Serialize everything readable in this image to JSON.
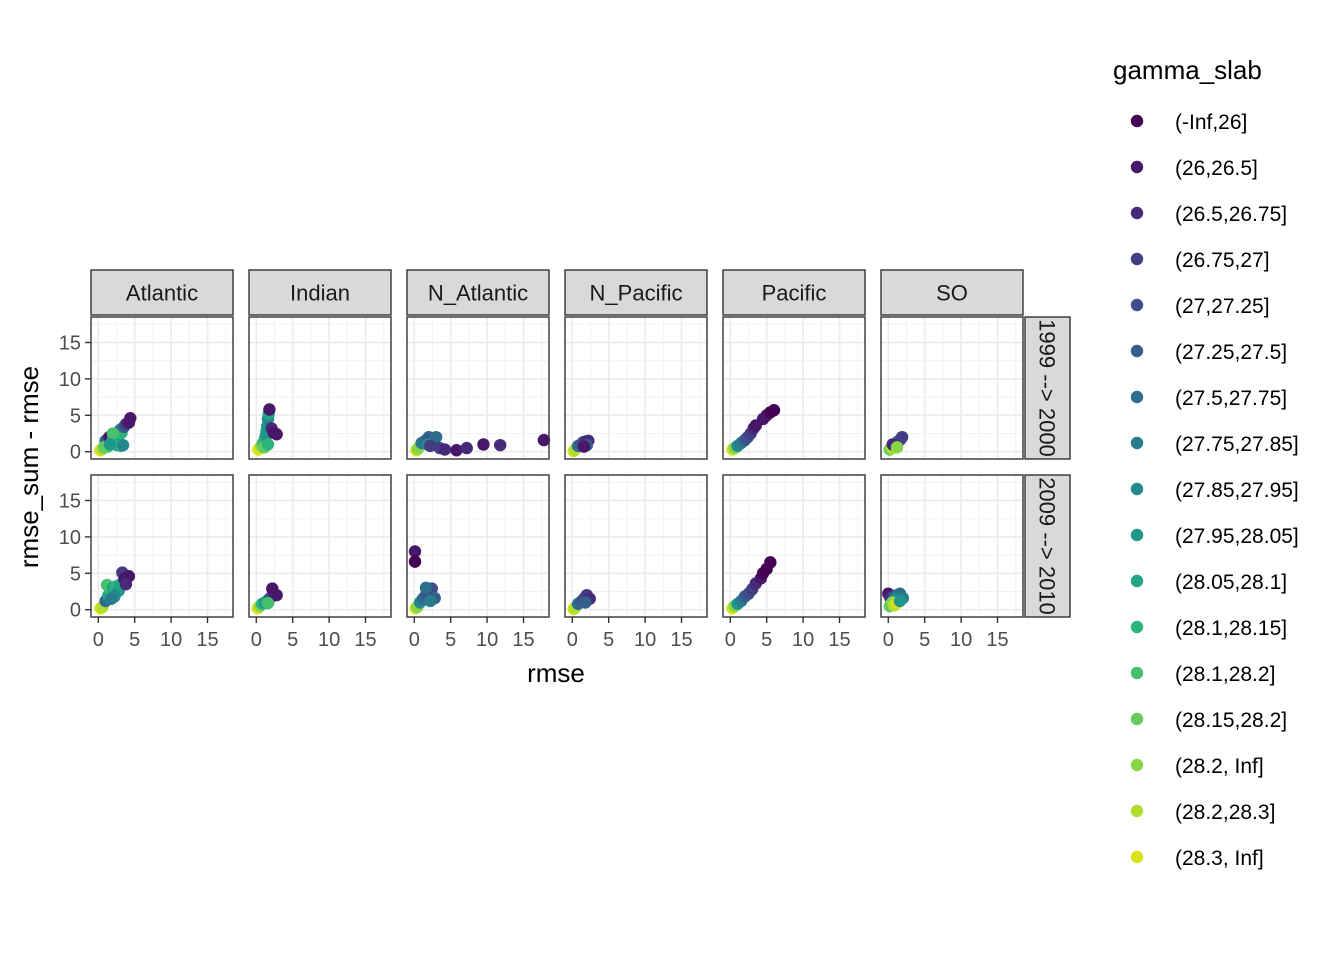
{
  "chart_data": {
    "type": "scatter",
    "facet_columns": [
      "Atlantic",
      "Indian",
      "N_Atlantic",
      "N_Pacific",
      "Pacific",
      "SO"
    ],
    "facet_rows": [
      "1999 --> 2000",
      "2009 --> 2010"
    ],
    "xlabel": "rmse",
    "ylabel": "rmse_sum - rmse",
    "xlim": [
      -1,
      18.5
    ],
    "ylim": [
      -1,
      18.5
    ],
    "x_ticks": [
      0,
      5,
      10,
      15
    ],
    "y_ticks": [
      0,
      5,
      10,
      15
    ],
    "grid": true,
    "legend_position": "right",
    "legend": {
      "title": "gamma_slab",
      "entries": [
        {
          "label": "(-Inf,26]",
          "color": "#440154"
        },
        {
          "label": "(26,26.5]",
          "color": "#481769"
        },
        {
          "label": "(26.5,26.75]",
          "color": "#472A7A"
        },
        {
          "label": "(26.75,27]",
          "color": "#433D84"
        },
        {
          "label": "(27,27.25]",
          "color": "#3D4E8A"
        },
        {
          "label": "(27.25,27.5]",
          "color": "#355E8D"
        },
        {
          "label": "(27.5,27.75]",
          "color": "#2E6D8E"
        },
        {
          "label": "(27.75,27.85]",
          "color": "#297B8E"
        },
        {
          "label": "(27.85,27.95]",
          "color": "#23898E"
        },
        {
          "label": "(27.95,28.05]",
          "color": "#1F978B"
        },
        {
          "label": "(28.05,28.1]",
          "color": "#21A585"
        },
        {
          "label": "(28.1,28.15]",
          "color": "#2EB37C"
        },
        {
          "label": "(28.1,28.2]",
          "color": "#46C06F"
        },
        {
          "label": "(28.15,28.2]",
          "color": "#65CB5E"
        },
        {
          "label": "(28.2, Inf]",
          "color": "#89D548"
        },
        {
          "label": "(28.2,28.3]",
          "color": "#B0DD2F"
        },
        {
          "label": "(28.3, Inf]",
          "color": "#D8E219"
        }
      ]
    },
    "panels": [
      {
        "row": 0,
        "col": 0,
        "points": [
          [
            0.3,
            0.2,
            16
          ],
          [
            0.6,
            0.4,
            15
          ],
          [
            1.0,
            1.5,
            6
          ],
          [
            1.5,
            2.0,
            1
          ],
          [
            1.8,
            1.2,
            8
          ],
          [
            2.0,
            1.6,
            9
          ],
          [
            2.2,
            2.1,
            10
          ],
          [
            2.5,
            1.5,
            11
          ],
          [
            2.8,
            2.2,
            10
          ],
          [
            3.0,
            3.0,
            7
          ],
          [
            3.2,
            2.6,
            11
          ],
          [
            3.5,
            3.4,
            5
          ],
          [
            3.8,
            3.8,
            3
          ],
          [
            4.2,
            4.0,
            1
          ],
          [
            4.4,
            4.6,
            1
          ],
          [
            2.6,
            0.9,
            10
          ],
          [
            3.1,
            0.8,
            11
          ],
          [
            3.4,
            0.9,
            8
          ],
          [
            1.3,
            0.7,
            12
          ],
          [
            0.8,
            0.6,
            13
          ],
          [
            2.0,
            2.5,
            12
          ],
          [
            1.6,
            1.0,
            9
          ]
        ]
      },
      {
        "row": 0,
        "col": 1,
        "points": [
          [
            0.3,
            0.3,
            16
          ],
          [
            0.7,
            0.8,
            14
          ],
          [
            0.9,
            1.2,
            12
          ],
          [
            1.2,
            1.8,
            11
          ],
          [
            1.4,
            2.8,
            10
          ],
          [
            1.5,
            3.5,
            9
          ],
          [
            1.6,
            4.5,
            8
          ],
          [
            1.7,
            5.2,
            10
          ],
          [
            1.8,
            5.8,
            1
          ],
          [
            1.3,
            2.2,
            9
          ],
          [
            2.1,
            3.2,
            2
          ],
          [
            2.4,
            2.6,
            1
          ],
          [
            2.8,
            2.4,
            1
          ],
          [
            1.1,
            0.6,
            13
          ],
          [
            1.6,
            1.0,
            11
          ]
        ]
      },
      {
        "row": 0,
        "col": 2,
        "points": [
          [
            0.3,
            0.2,
            16
          ],
          [
            0.5,
            0.4,
            14
          ],
          [
            1.0,
            1.2,
            7
          ],
          [
            1.5,
            1.5,
            6
          ],
          [
            2.0,
            2.0,
            5
          ],
          [
            2.4,
            1.6,
            4
          ],
          [
            2.8,
            1.8,
            5
          ],
          [
            3.0,
            2.0,
            6
          ],
          [
            1.8,
            1.0,
            8
          ],
          [
            2.2,
            0.8,
            3
          ],
          [
            3.5,
            0.5,
            3
          ],
          [
            4.2,
            0.3,
            2
          ],
          [
            5.8,
            0.2,
            1
          ],
          [
            7.2,
            0.5,
            2
          ],
          [
            9.5,
            1.0,
            1
          ],
          [
            11.8,
            0.9,
            2
          ],
          [
            17.8,
            1.6,
            1
          ]
        ]
      },
      {
        "row": 0,
        "col": 3,
        "points": [
          [
            0.2,
            0.1,
            16
          ],
          [
            0.4,
            0.3,
            15
          ],
          [
            0.8,
            0.8,
            6
          ],
          [
            1.2,
            1.0,
            5
          ],
          [
            1.5,
            1.3,
            4
          ],
          [
            1.8,
            1.4,
            3
          ],
          [
            2.2,
            1.5,
            2
          ],
          [
            2.0,
            0.9,
            5
          ],
          [
            1.6,
            0.7,
            1
          ]
        ]
      },
      {
        "row": 0,
        "col": 4,
        "points": [
          [
            0.3,
            0.3,
            16
          ],
          [
            0.6,
            0.5,
            14
          ],
          [
            1.0,
            0.8,
            8
          ],
          [
            1.5,
            1.2,
            7
          ],
          [
            2.0,
            1.6,
            5
          ],
          [
            2.4,
            2.0,
            4
          ],
          [
            2.8,
            2.5,
            3
          ],
          [
            3.2,
            3.2,
            2
          ],
          [
            3.5,
            3.6,
            1
          ],
          [
            4.5,
            4.5,
            1
          ],
          [
            5.0,
            5.0,
            1
          ],
          [
            5.5,
            5.4,
            0
          ],
          [
            6.0,
            5.7,
            0
          ]
        ]
      },
      {
        "row": 0,
        "col": 5,
        "points": [
          [
            0.2,
            0.3,
            13
          ],
          [
            0.5,
            0.5,
            15
          ],
          [
            0.8,
            0.8,
            16
          ],
          [
            1.0,
            1.0,
            12
          ],
          [
            1.3,
            1.4,
            8
          ],
          [
            1.6,
            1.6,
            4
          ],
          [
            1.9,
            2.0,
            3
          ],
          [
            0.6,
            1.0,
            2
          ],
          [
            1.2,
            0.6,
            14
          ]
        ]
      },
      {
        "row": 1,
        "col": 0,
        "points": [
          [
            0.3,
            0.2,
            16
          ],
          [
            0.6,
            0.4,
            15
          ],
          [
            1.0,
            1.2,
            6
          ],
          [
            1.4,
            2.0,
            10
          ],
          [
            1.6,
            2.8,
            11
          ],
          [
            1.2,
            3.4,
            12
          ],
          [
            2.0,
            3.0,
            10
          ],
          [
            2.4,
            3.2,
            11
          ],
          [
            2.8,
            2.6,
            9
          ],
          [
            3.1,
            3.5,
            10
          ],
          [
            3.3,
            5.1,
            3
          ],
          [
            3.6,
            4.2,
            1
          ],
          [
            4.2,
            4.6,
            1
          ],
          [
            3.8,
            3.5,
            2
          ],
          [
            2.2,
            1.8,
            8
          ],
          [
            1.8,
            1.5,
            7
          ]
        ]
      },
      {
        "row": 1,
        "col": 1,
        "points": [
          [
            0.2,
            0.2,
            16
          ],
          [
            0.5,
            0.5,
            14
          ],
          [
            0.8,
            0.8,
            11
          ],
          [
            1.2,
            1.0,
            9
          ],
          [
            1.5,
            1.2,
            10
          ],
          [
            1.8,
            1.5,
            5
          ],
          [
            2.1,
            1.8,
            4
          ],
          [
            2.4,
            2.2,
            2
          ],
          [
            2.2,
            2.9,
            1
          ],
          [
            2.8,
            2.0,
            1
          ],
          [
            1.6,
            0.9,
            12
          ]
        ]
      },
      {
        "row": 1,
        "col": 2,
        "points": [
          [
            0.1,
            8.0,
            1
          ],
          [
            0.1,
            6.6,
            0
          ],
          [
            0.2,
            0.2,
            16
          ],
          [
            0.4,
            0.4,
            14
          ],
          [
            0.8,
            1.0,
            8
          ],
          [
            1.2,
            1.5,
            6
          ],
          [
            1.6,
            2.0,
            5
          ],
          [
            2.0,
            2.5,
            4
          ],
          [
            2.4,
            2.9,
            4
          ],
          [
            2.8,
            1.6,
            5
          ],
          [
            1.6,
            3.0,
            6
          ],
          [
            2.2,
            1.2,
            7
          ]
        ]
      },
      {
        "row": 1,
        "col": 3,
        "points": [
          [
            0.2,
            0.1,
            16
          ],
          [
            0.4,
            0.3,
            15
          ],
          [
            0.8,
            0.8,
            6
          ],
          [
            1.2,
            1.1,
            5
          ],
          [
            1.6,
            1.5,
            4
          ],
          [
            2.0,
            2.0,
            3
          ],
          [
            2.4,
            1.5,
            2
          ],
          [
            1.8,
            1.0,
            5
          ]
        ]
      },
      {
        "row": 1,
        "col": 4,
        "points": [
          [
            0.3,
            0.2,
            16
          ],
          [
            0.6,
            0.5,
            14
          ],
          [
            1.0,
            0.8,
            9
          ],
          [
            1.5,
            1.2,
            7
          ],
          [
            2.0,
            1.8,
            5
          ],
          [
            2.5,
            2.2,
            4
          ],
          [
            3.0,
            2.8,
            3
          ],
          [
            3.5,
            3.6,
            2
          ],
          [
            4.2,
            4.3,
            1
          ],
          [
            4.5,
            5.0,
            0
          ],
          [
            5.0,
            5.6,
            0
          ],
          [
            5.5,
            6.5,
            0
          ]
        ]
      },
      {
        "row": 1,
        "col": 5,
        "points": [
          [
            0.0,
            2.2,
            1
          ],
          [
            0.3,
            1.6,
            2
          ],
          [
            0.5,
            1.2,
            3
          ],
          [
            0.8,
            1.8,
            4
          ],
          [
            1.2,
            2.0,
            5
          ],
          [
            1.6,
            2.2,
            6
          ],
          [
            2.0,
            1.6,
            7
          ],
          [
            1.0,
            1.5,
            8
          ],
          [
            0.4,
            0.8,
            12
          ],
          [
            0.2,
            0.5,
            13
          ],
          [
            0.6,
            1.0,
            14
          ],
          [
            0.8,
            0.6,
            15
          ],
          [
            1.2,
            0.9,
            16
          ],
          [
            1.6,
            1.2,
            9
          ]
        ]
      }
    ]
  }
}
